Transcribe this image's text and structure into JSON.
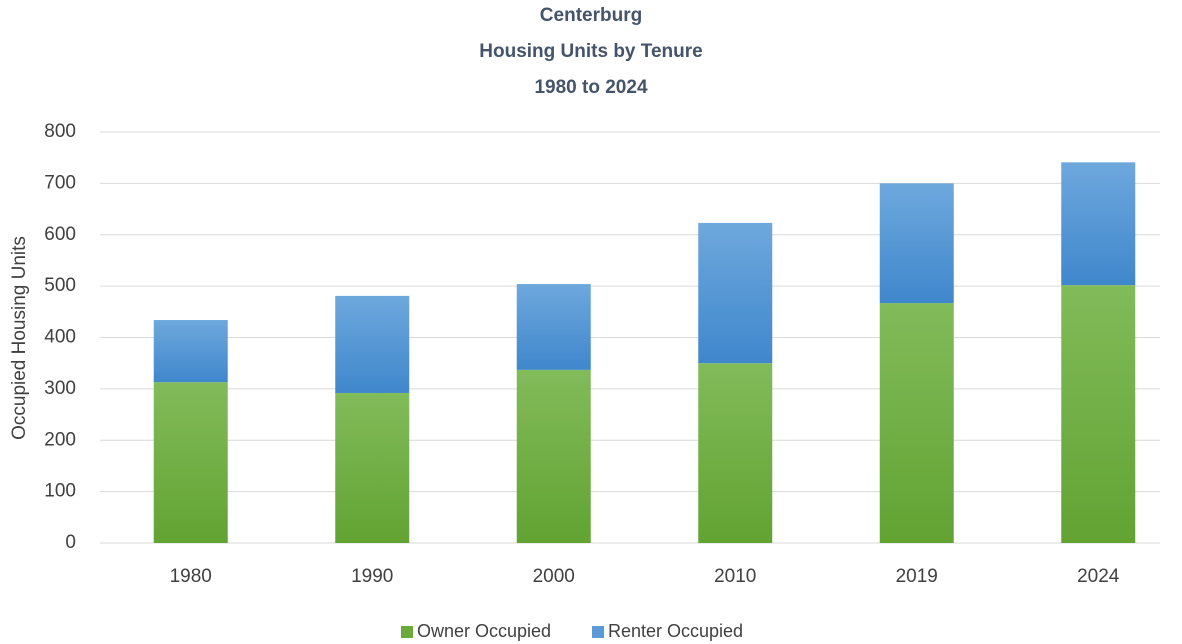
{
  "chart_data": {
    "type": "stacked_bar",
    "title": [
      "Centerburg",
      "Housing Units by Tenure",
      "1980 to 2024"
    ],
    "y_label": "Occupied Housing Units",
    "categories": [
      "1980",
      "1990",
      "2000",
      "2010",
      "2019",
      "2024"
    ],
    "series": [
      {
        "name": "Owner Occupied",
        "color": "#6aaa3a",
        "values": [
          313,
          292,
          337,
          350,
          467,
          502
        ]
      },
      {
        "name": "Renter Occupied",
        "color": "#5b9bd5",
        "values": [
          121,
          189,
          167,
          273,
          233,
          239
        ]
      }
    ],
    "ylim": [
      0,
      800
    ],
    "yticks": [
      0,
      100,
      200,
      300,
      400,
      500,
      600,
      700,
      800
    ],
    "grid": true,
    "legend": "bottom"
  }
}
